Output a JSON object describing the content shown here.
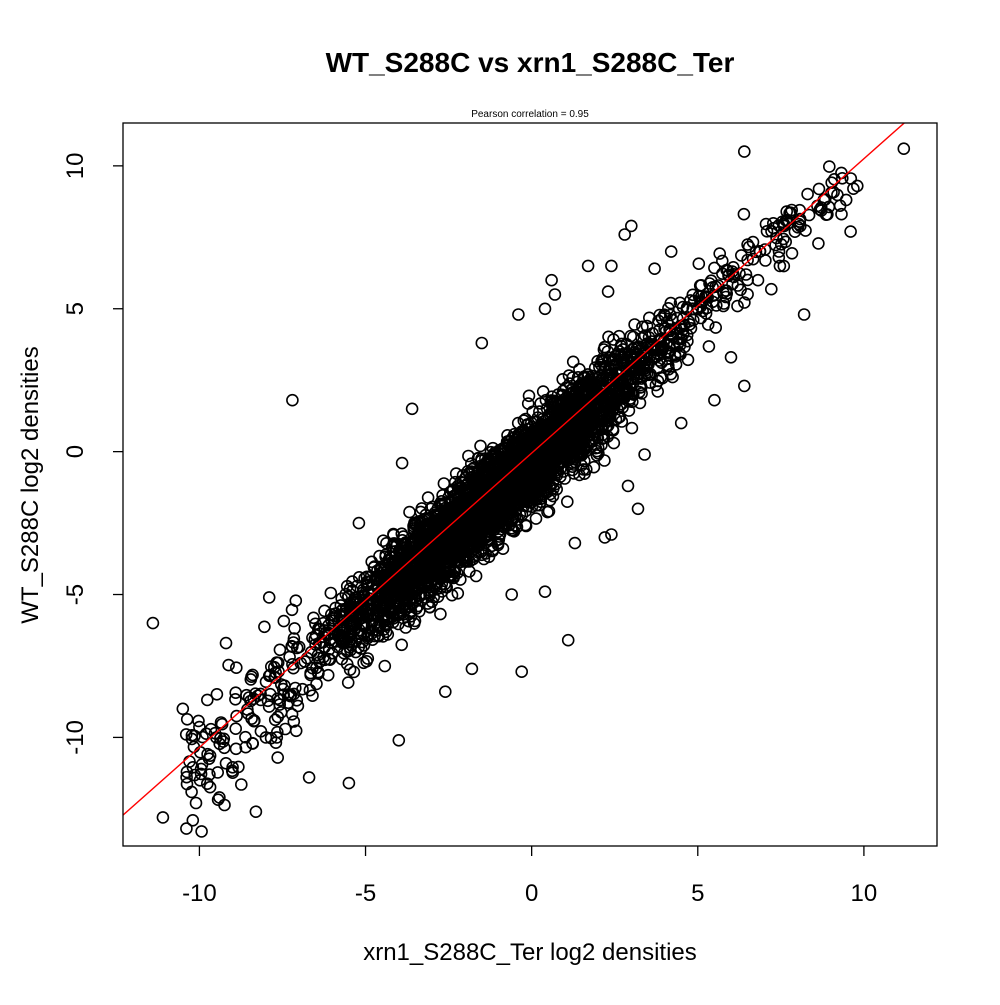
{
  "chart_data": {
    "type": "scatter",
    "title": "WT_S288C vs xrn1_S288C_Ter",
    "subtitle": "Pearson correlation =  0.95",
    "xlabel": "xrn1_S288C_Ter log2 densities",
    "ylabel": "WT_S288C log2 densities",
    "xlim": [
      -12.3,
      12.2
    ],
    "ylim": [
      -13.8,
      11.5
    ],
    "xticks": [
      -10,
      -5,
      0,
      5,
      10
    ],
    "yticks": [
      -10,
      -5,
      0,
      5,
      10
    ],
    "xtick_labels": [
      "-10",
      "-5",
      "0",
      "5",
      "10"
    ],
    "ytick_labels": [
      "-10",
      "-5",
      "0",
      "5",
      "10"
    ],
    "grid": false,
    "fit_line": {
      "slope": 1.03,
      "intercept": -0.05,
      "color": "#ff0000"
    },
    "marker": {
      "shape": "open-circle",
      "color": "#000000"
    },
    "outliers": [
      {
        "x": 11.2,
        "y": 10.6
      },
      {
        "x": 6.4,
        "y": 10.5
      },
      {
        "x": 9.8,
        "y": 9.3
      },
      {
        "x": 9.6,
        "y": 7.7
      },
      {
        "x": 8.2,
        "y": 4.8
      },
      {
        "x": 6.4,
        "y": 2.3
      },
      {
        "x": 6.0,
        "y": 3.3
      },
      {
        "x": 5.5,
        "y": 1.8
      },
      {
        "x": 4.5,
        "y": 1.0
      },
      {
        "x": 3.0,
        "y": 7.9
      },
      {
        "x": 2.8,
        "y": 7.6
      },
      {
        "x": 2.4,
        "y": 6.5
      },
      {
        "x": 1.7,
        "y": 6.5
      },
      {
        "x": 4.2,
        "y": 7.0
      },
      {
        "x": 0.6,
        "y": 6.0
      },
      {
        "x": 0.7,
        "y": 5.5
      },
      {
        "x": 0.4,
        "y": 5.0
      },
      {
        "x": -0.4,
        "y": 4.8
      },
      {
        "x": 2.3,
        "y": 5.6
      },
      {
        "x": 3.7,
        "y": 6.4
      },
      {
        "x": -1.5,
        "y": 3.8
      },
      {
        "x": -3.6,
        "y": 1.5
      },
      {
        "x": -7.2,
        "y": 1.8
      },
      {
        "x": -3.9,
        "y": -0.4
      },
      {
        "x": -11.4,
        "y": -6.0
      },
      {
        "x": -11.1,
        "y": -12.8
      },
      {
        "x": -10.2,
        "y": -12.9
      },
      {
        "x": -9.4,
        "y": -12.1
      },
      {
        "x": -8.3,
        "y": -12.6
      },
      {
        "x": -8.0,
        "y": -10.0
      },
      {
        "x": -10.5,
        "y": -9.0
      },
      {
        "x": -5.5,
        "y": -11.6
      },
      {
        "x": -6.7,
        "y": -11.4
      },
      {
        "x": -4.0,
        "y": -10.1
      },
      {
        "x": 1.1,
        "y": -6.6
      },
      {
        "x": 3.2,
        "y": -2.0
      },
      {
        "x": 3.4,
        "y": -0.1
      },
      {
        "x": 2.9,
        "y": -1.2
      },
      {
        "x": 2.4,
        "y": -2.9
      },
      {
        "x": 1.3,
        "y": -3.2
      },
      {
        "x": 2.2,
        "y": -3.0
      },
      {
        "x": -0.3,
        "y": -7.7
      },
      {
        "x": -2.6,
        "y": -8.4
      },
      {
        "x": -1.8,
        "y": -7.6
      },
      {
        "x": 0.4,
        "y": -4.9
      },
      {
        "x": -0.6,
        "y": -5.0
      },
      {
        "x": -5.2,
        "y": -2.5
      },
      {
        "x": -7.9,
        "y": -5.1
      },
      {
        "x": -9.2,
        "y": -6.7
      },
      {
        "x": -8.9,
        "y": -10.4
      },
      {
        "x": -9.7,
        "y": -11.3
      },
      {
        "x": 8.6,
        "y": 8.6
      },
      {
        "x": 8.9,
        "y": 8.3
      },
      {
        "x": 7.6,
        "y": 7.9
      }
    ],
    "cloud": {
      "count": 4200,
      "seed": 42,
      "x_range": [
        -9.5,
        9.2
      ],
      "noise_sd": 0.75,
      "y_offset": -0.35
    }
  }
}
